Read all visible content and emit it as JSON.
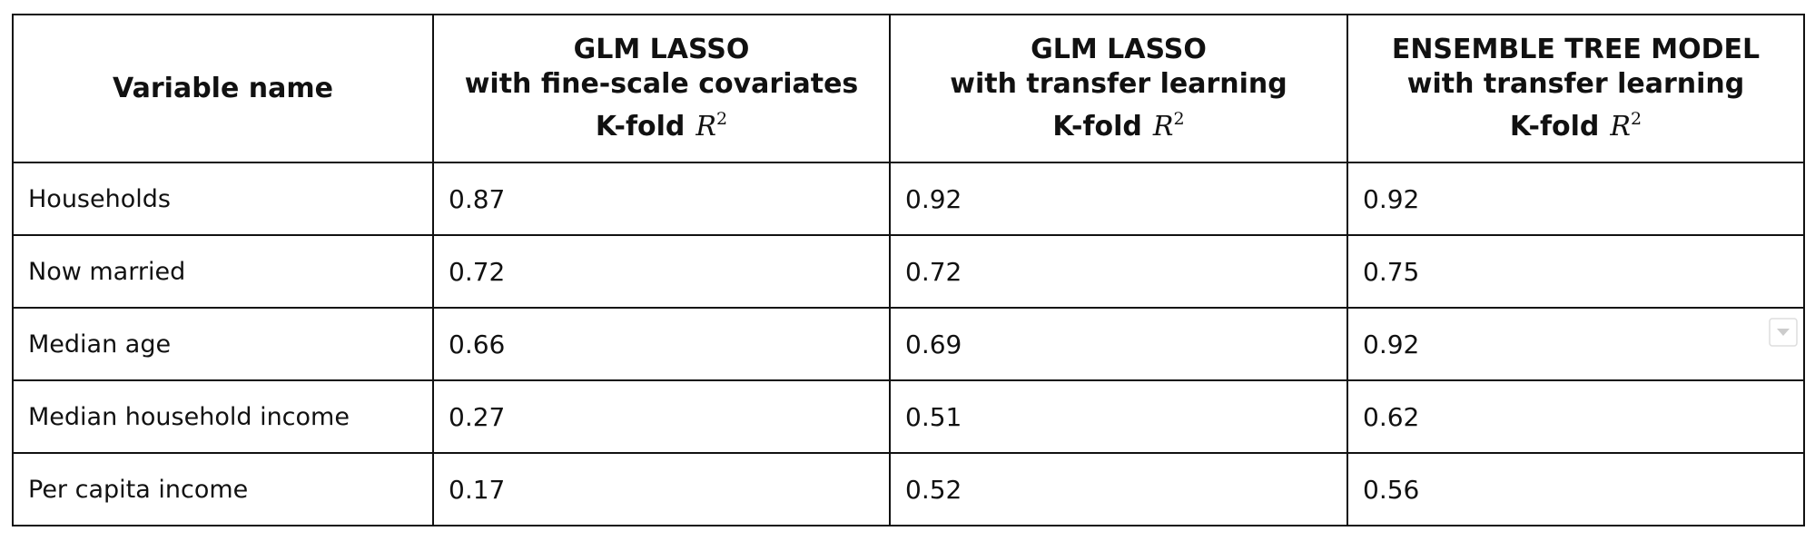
{
  "table": {
    "header": [
      {
        "lines": [
          "Variable name"
        ]
      },
      {
        "lines": [
          "GLM LASSO",
          "with fine-scale covariates"
        ],
        "metric": "K-fold",
        "symbol": "R",
        "exponent": "2"
      },
      {
        "lines": [
          "GLM LASSO",
          "with transfer learning"
        ],
        "metric": "K-fold",
        "symbol": "R",
        "exponent": "2"
      },
      {
        "lines": [
          "ENSEMBLE TREE MODEL",
          "with transfer learning"
        ],
        "metric": "K-fold",
        "symbol": "R",
        "exponent": "2"
      }
    ],
    "rows": [
      [
        "Households",
        0.87,
        0.92,
        0.92
      ],
      [
        "Now married",
        0.72,
        0.72,
        0.75
      ],
      [
        "Median age",
        0.66,
        0.69,
        0.92
      ],
      [
        "Median household income",
        0.27,
        0.51,
        0.62
      ],
      [
        "Per capita income",
        0.17,
        0.52,
        0.56
      ]
    ]
  }
}
